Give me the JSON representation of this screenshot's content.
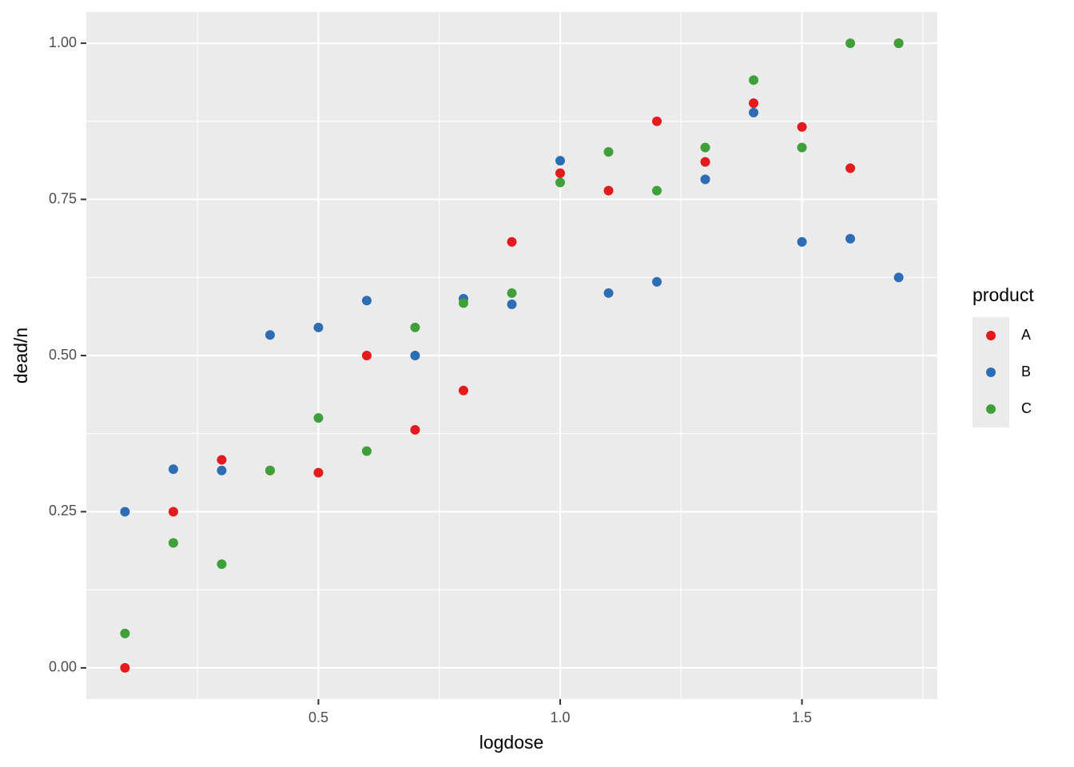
{
  "chart_data": {
    "type": "scatter",
    "x_label": "logdose",
    "y_label": "dead/n",
    "legend_title": "product",
    "legend_position": "right",
    "x": [
      0.1,
      0.2,
      0.3,
      0.4,
      0.5,
      0.6,
      0.7,
      0.8,
      0.9,
      1.0,
      1.1,
      1.2,
      1.3,
      1.4,
      1.5,
      1.6,
      1.7
    ],
    "series": [
      {
        "name": "A",
        "color": "#e41a1c",
        "values": [
          0,
          0.25,
          0.333,
          0.316,
          0.3125,
          0.5,
          0.381,
          0.444,
          0.682,
          0.792,
          0.764,
          0.875,
          0.81,
          0.904,
          0.866,
          0.8,
          1.0
        ]
      },
      {
        "name": "B",
        "color": "#2e6db4",
        "values": [
          0.25,
          0.318,
          0.316,
          0.533,
          0.545,
          0.588,
          0.5,
          0.591,
          0.582,
          0.812,
          0.6,
          0.618,
          0.782,
          0.889,
          0.682,
          0.687,
          0.625
        ]
      },
      {
        "name": "C",
        "color": "#3fa03a",
        "values": [
          0.055,
          0.2,
          0.166,
          0.316,
          0.4,
          0.347,
          0.545,
          0.584,
          0.6,
          0.777,
          0.826,
          0.764,
          0.833,
          0.941,
          0.833,
          1.0,
          1.0
        ]
      }
    ],
    "xlim": [
      0.02,
      1.78
    ],
    "ylim": [
      -0.05,
      1.05
    ],
    "xticks": [
      0.5,
      {
        "value": 1.0,
        "label": "1.0"
      },
      1.5
    ],
    "yticks": [
      {
        "value": 0,
        "label": "0.00"
      },
      {
        "value": 0.25,
        "label": "0.25"
      },
      {
        "value": 0.5,
        "label": "0.50"
      },
      {
        "value": 0.75,
        "label": "0.75"
      },
      {
        "value": 1.0,
        "label": "1.00"
      }
    ],
    "x_minor_breaks": [
      0.25,
      0.75,
      1.25,
      1.75
    ],
    "y_minor_breaks": [
      0.125,
      0.375,
      0.625,
      0.875
    ],
    "grid": true
  }
}
